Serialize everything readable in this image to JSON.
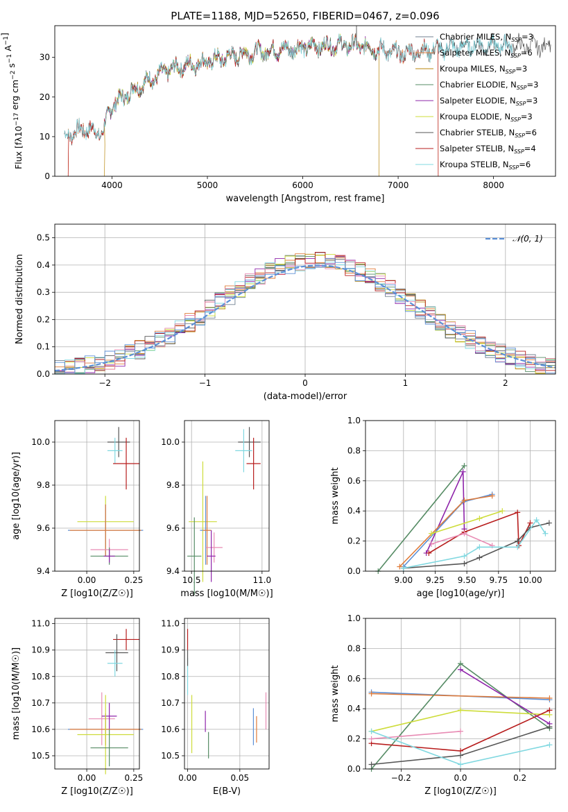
{
  "title": "PLATE=1188, MJD=52650, FIBERID=0467, z=0.096",
  "colors": {
    "Chabrier MILES": "#708090",
    "Salpeter MILES": "#e07b39",
    "Kroupa MILES": "#b8860b",
    "Chabrier ELODIE": "#558b64",
    "Salpeter ELODIE": "#8e24aa",
    "Kroupa ELODIE": "#cddc39",
    "Chabrier STELIB": "#555555",
    "Salpeter STELIB": "#b71c1c",
    "Kroupa STELIB": "#80d8e0",
    "pink": "#e88bb4",
    "blue": "#5b8fd6",
    "green2": "#7aa36b"
  },
  "chart_data": [
    {
      "id": "spectrum",
      "type": "line",
      "xlabel": "wavelength [Angstrom, rest frame]",
      "ylabel": "Flux [f_λ10^-17 erg cm^-2 s^-1 A^-1]",
      "xlim": [
        3400,
        8650
      ],
      "ylim": [
        0,
        38
      ],
      "xticks": [
        4000,
        5000,
        6000,
        7000,
        8000
      ],
      "yticks": [
        0,
        10,
        20,
        30
      ],
      "legend": [
        "Chabrier MILES, N_SSP=3",
        "Salpeter MILES, N_SSP=6",
        "Kroupa MILES, N_SSP=3",
        "Chabrier ELODIE, N_SSP=3",
        "Salpeter ELODIE, N_SSP=3",
        "Kroupa ELODIE, N_SSP=3",
        "Chabrier STELIB, N_SSP=6",
        "Salpeter STELIB, N_SSP=4",
        "Kroupa STELIB, N_SSP=6"
      ],
      "continuum": [
        [
          3500,
          10
        ],
        [
          3700,
          12
        ],
        [
          3900,
          11
        ],
        [
          4000,
          18
        ],
        [
          4300,
          23
        ],
        [
          4600,
          27
        ],
        [
          5000,
          29
        ],
        [
          5400,
          31
        ],
        [
          5800,
          32
        ],
        [
          6200,
          33
        ],
        [
          6600,
          33
        ],
        [
          7000,
          31
        ],
        [
          7400,
          32
        ],
        [
          7800,
          33
        ],
        [
          8200,
          33
        ]
      ]
    },
    {
      "id": "hist",
      "type": "line",
      "xlabel": "(data-model)/error",
      "ylabel": "Normed distribution",
      "xlim": [
        -2.5,
        2.5
      ],
      "ylim": [
        0,
        0.55
      ],
      "xticks": [
        -2,
        -1,
        0,
        1,
        2
      ],
      "yticks": [
        0.0,
        0.1,
        0.2,
        0.3,
        0.4,
        0.5
      ],
      "legend": [
        "N(0,1)"
      ]
    },
    {
      "id": "ageZ",
      "type": "scatter",
      "xlabel": "Z [log10(Z/Z☉)]",
      "ylabel": "age [log10(age/yr)]",
      "xlim": [
        -0.17,
        0.28
      ],
      "ylim": [
        9.4,
        10.1
      ],
      "xticks": [
        0.0,
        0.25
      ],
      "yticks": [
        9.4,
        9.6,
        9.8,
        10.0
      ],
      "points": [
        {
          "x": 0.17,
          "y": 10.0,
          "xe": 0.06,
          "ye": 0.07,
          "c": "Chabrier STELIB"
        },
        {
          "x": 0.15,
          "y": 9.96,
          "xe": 0.04,
          "ye": 0.06,
          "c": "Kroupa STELIB"
        },
        {
          "x": 0.21,
          "y": 9.9,
          "xe": 0.07,
          "ye": 0.12,
          "c": "Salpeter STELIB"
        },
        {
          "x": 0.1,
          "y": 9.63,
          "xe": 0.15,
          "ye": 0.12,
          "c": "Kroupa ELODIE"
        },
        {
          "x": 0.1,
          "y": 9.59,
          "xe": 0.2,
          "ye": 0.12,
          "c": "blue"
        },
        {
          "x": 0.1,
          "y": 9.59,
          "xe": 0.19,
          "ye": 0.12,
          "c": "Salpeter MILES"
        },
        {
          "x": 0.12,
          "y": 9.5,
          "xe": 0.1,
          "ye": 0.05,
          "c": "pink"
        },
        {
          "x": 0.12,
          "y": 9.47,
          "xe": 0.1,
          "ye": 0.04,
          "c": "Chabrier ELODIE"
        },
        {
          "x": 0.12,
          "y": 9.47,
          "xe": 0.03,
          "ye": 0.03,
          "c": "Salpeter ELODIE"
        }
      ]
    },
    {
      "id": "ageMass",
      "type": "scatter",
      "xlabel": "mass [log10(M/M☉)]",
      "ylabel": "",
      "xlim": [
        10.45,
        11.05
      ],
      "ylim": [
        9.4,
        10.1
      ],
      "xticks": [
        10.5,
        11.0
      ],
      "yticks": [
        9.4,
        9.6,
        9.8,
        10.0
      ],
      "points": [
        {
          "x": 10.91,
          "y": 10.0,
          "xe": 0.08,
          "ye": 0.07,
          "c": "Chabrier STELIB"
        },
        {
          "x": 10.87,
          "y": 9.96,
          "xe": 0.06,
          "ye": 0.1,
          "c": "Kroupa STELIB"
        },
        {
          "x": 10.94,
          "y": 9.9,
          "xe": 0.05,
          "ye": 0.12,
          "c": "Salpeter STELIB"
        },
        {
          "x": 10.58,
          "y": 9.63,
          "xe": 0.1,
          "ye": 0.28,
          "c": "Kroupa ELODIE"
        },
        {
          "x": 10.6,
          "y": 9.59,
          "xe": 0.04,
          "ye": 0.16,
          "c": "blue"
        },
        {
          "x": 10.61,
          "y": 9.59,
          "xe": 0.03,
          "ye": 0.16,
          "c": "Salpeter MILES"
        },
        {
          "x": 10.66,
          "y": 9.51,
          "xe": 0.06,
          "ye": 0.07,
          "c": "pink"
        },
        {
          "x": 10.52,
          "y": 9.47,
          "xe": 0.05,
          "ye": 0.18,
          "c": "Chabrier ELODIE"
        },
        {
          "x": 10.64,
          "y": 9.47,
          "xe": 0.03,
          "ye": 0.12,
          "c": "Salpeter ELODIE"
        }
      ]
    },
    {
      "id": "weightAge",
      "type": "line",
      "xlabel": "age [log10(age/yr)]",
      "ylabel": "mass weight",
      "xlim": [
        8.7,
        10.2
      ],
      "ylim": [
        0,
        1
      ],
      "xticks": [
        9.0,
        9.25,
        9.5,
        9.75,
        10.0
      ],
      "yticks": [
        0.0,
        0.2,
        0.4,
        0.6,
        0.8,
        1.0
      ],
      "series": [
        {
          "c": "Chabrier ELODIE",
          "x": [
            8.8,
            9.48
          ],
          "y": [
            0.0,
            0.7
          ]
        },
        {
          "c": "Salpeter ELODIE",
          "x": [
            9.18,
            9.47,
            9.48
          ],
          "y": [
            0.12,
            0.66,
            0.28
          ]
        },
        {
          "c": "blue",
          "x": [
            9.0,
            9.47,
            9.7
          ],
          "y": [
            0.03,
            0.46,
            0.51
          ]
        },
        {
          "c": "Salpeter MILES",
          "x": [
            8.97,
            9.48,
            9.7
          ],
          "y": [
            0.03,
            0.47,
            0.5
          ]
        },
        {
          "c": "Kroupa ELODIE",
          "x": [
            9.22,
            9.6,
            9.78
          ],
          "y": [
            0.25,
            0.35,
            0.4
          ]
        },
        {
          "c": "Salpeter STELIB",
          "x": [
            9.2,
            9.48,
            9.9,
            9.91,
            10.0
          ],
          "y": [
            0.12,
            0.26,
            0.39,
            0.17,
            0.32
          ]
        },
        {
          "c": "pink",
          "x": [
            9.22,
            9.48,
            9.7
          ],
          "y": [
            0.18,
            0.25,
            0.17
          ]
        },
        {
          "c": "Chabrier STELIB",
          "x": [
            9.0,
            9.48,
            9.6,
            9.9,
            10.0,
            10.15
          ],
          "y": [
            0.02,
            0.05,
            0.09,
            0.2,
            0.29,
            0.32
          ]
        },
        {
          "c": "Kroupa STELIB",
          "x": [
            9.0,
            9.48,
            9.6,
            9.9,
            10.05,
            10.12
          ],
          "y": [
            0.02,
            0.1,
            0.16,
            0.16,
            0.34,
            0.25
          ]
        }
      ]
    },
    {
      "id": "massZ",
      "type": "scatter",
      "xlabel": "Z [log10(Z/Z☉)]",
      "ylabel": "mass [log10(M/M☉)]",
      "xlim": [
        -0.17,
        0.28
      ],
      "ylim": [
        10.45,
        11.02
      ],
      "xticks": [
        0.0,
        0.25
      ],
      "yticks": [
        10.5,
        10.6,
        10.7,
        10.8,
        10.9,
        11.0
      ],
      "points": [
        {
          "x": 0.21,
          "y": 10.94,
          "xe": 0.07,
          "ye": 0.04,
          "c": "Salpeter STELIB"
        },
        {
          "x": 0.16,
          "y": 10.89,
          "xe": 0.06,
          "ye": 0.07,
          "c": "Chabrier STELIB"
        },
        {
          "x": 0.15,
          "y": 10.85,
          "xe": 0.04,
          "ye": 0.05,
          "c": "Kroupa STELIB"
        },
        {
          "x": 0.08,
          "y": 10.64,
          "xe": 0.07,
          "ye": 0.1,
          "c": "pink"
        },
        {
          "x": 0.12,
          "y": 10.65,
          "xe": 0.04,
          "ye": 0.05,
          "c": "Salpeter ELODIE"
        },
        {
          "x": 0.1,
          "y": 10.6,
          "xe": 0.2,
          "ye": 0.06,
          "c": "blue"
        },
        {
          "x": 0.1,
          "y": 10.6,
          "xe": 0.19,
          "ye": 0.06,
          "c": "Salpeter MILES"
        },
        {
          "x": 0.1,
          "y": 10.58,
          "xe": 0.15,
          "ye": 0.15,
          "c": "Kroupa ELODIE"
        },
        {
          "x": 0.12,
          "y": 10.53,
          "xe": 0.1,
          "ye": 0.07,
          "c": "Chabrier ELODIE"
        }
      ]
    },
    {
      "id": "massEBV",
      "type": "scatter",
      "xlabel": "E(B-V)",
      "ylabel": "",
      "xlim": [
        -0.003,
        0.078
      ],
      "ylim": [
        10.45,
        11.02
      ],
      "xticks": [
        0.0,
        0.05
      ],
      "yticks": [
        10.5,
        10.6,
        10.7,
        10.8,
        10.9,
        11.0
      ],
      "points": [
        {
          "x": 0.0,
          "y": 10.94,
          "xe": 0,
          "ye": 0.04,
          "c": "Salpeter STELIB"
        },
        {
          "x": 0.0,
          "y": 10.8,
          "xe": 0,
          "ye": 0.07,
          "c": "Kroupa STELIB"
        },
        {
          "x": 0.0,
          "y": 10.87,
          "xe": 0,
          "ye": 0.03,
          "c": "Chabrier STELIB"
        },
        {
          "x": 0.004,
          "y": 10.62,
          "xe": 0,
          "ye": 0.11,
          "c": "Kroupa ELODIE"
        },
        {
          "x": 0.017,
          "y": 10.63,
          "xe": 0,
          "ye": 0.04,
          "c": "Salpeter ELODIE"
        },
        {
          "x": 0.02,
          "y": 10.54,
          "xe": 0,
          "ye": 0.05,
          "c": "Chabrier ELODIE"
        },
        {
          "x": 0.063,
          "y": 10.61,
          "xe": 0,
          "ye": 0.07,
          "c": "blue"
        },
        {
          "x": 0.066,
          "y": 10.6,
          "xe": 0,
          "ye": 0.05,
          "c": "Salpeter MILES"
        },
        {
          "x": 0.075,
          "y": 10.67,
          "xe": 0,
          "ye": 0.07,
          "c": "pink"
        }
      ]
    },
    {
      "id": "weightZ",
      "type": "line",
      "xlabel": "Z [log10(Z/Z☉)]",
      "ylabel": "mass weight",
      "xlim": [
        -0.32,
        0.32
      ],
      "ylim": [
        0,
        1
      ],
      "xticks": [
        -0.2,
        0.0,
        0.2
      ],
      "yticks": [
        0.0,
        0.2,
        0.4,
        0.6,
        0.8,
        1.0
      ],
      "series": [
        {
          "c": "blue",
          "x": [
            -0.3,
            0.3
          ],
          "y": [
            0.51,
            0.46
          ]
        },
        {
          "c": "Salpeter MILES",
          "x": [
            -0.3,
            0.3
          ],
          "y": [
            0.5,
            0.47
          ]
        },
        {
          "c": "Chabrier ELODIE",
          "x": [
            -0.3,
            0.0,
            0.3
          ],
          "y": [
            0.0,
            0.7,
            0.27
          ]
        },
        {
          "c": "Salpeter ELODIE",
          "x": [
            0.0,
            0.3
          ],
          "y": [
            0.66,
            0.3
          ]
        },
        {
          "c": "Kroupa ELODIE",
          "x": [
            -0.3,
            0.0,
            0.3
          ],
          "y": [
            0.25,
            0.39,
            0.36
          ]
        },
        {
          "c": "Salpeter STELIB",
          "x": [
            -0.3,
            0.0,
            0.3
          ],
          "y": [
            0.17,
            0.12,
            0.39
          ]
        },
        {
          "c": "pink",
          "x": [
            -0.3,
            0.0
          ],
          "y": [
            0.2,
            0.25
          ]
        },
        {
          "c": "Chabrier STELIB",
          "x": [
            -0.3,
            0.0,
            0.3
          ],
          "y": [
            0.03,
            0.09,
            0.28
          ]
        },
        {
          "c": "Kroupa STELIB",
          "x": [
            -0.3,
            0.0,
            0.3
          ],
          "y": [
            0.25,
            0.03,
            0.16
          ]
        }
      ]
    }
  ]
}
